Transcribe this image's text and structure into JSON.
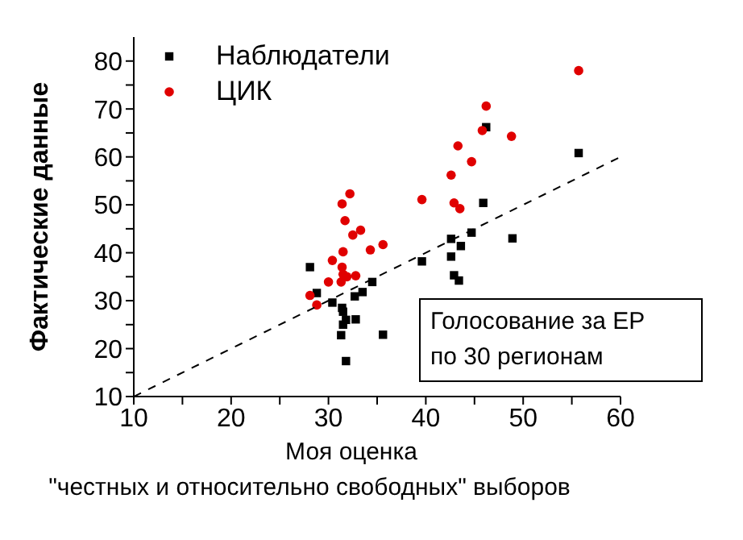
{
  "chart_data": {
    "type": "scatter",
    "xlabel": "Моя оценка\n\"честных и относительно свободных\" выборов",
    "ylabel": "Фактические данные",
    "annotations": [
      "Голосование за ЕР\nпо 30 регионам"
    ],
    "xlim": [
      10,
      60
    ],
    "xticks": [
      10,
      {
        "value": 15,
        "label": null
      },
      20,
      {
        "value": 25,
        "label": null
      },
      30,
      {
        "value": 35,
        "label": null
      },
      40,
      {
        "value": 45,
        "label": null
      },
      50,
      {
        "value": 55,
        "label": null
      },
      60
    ],
    "ylim": [
      10,
      85
    ],
    "yticks": [
      10,
      {
        "value": 15,
        "label": null
      },
      20,
      {
        "value": 25,
        "label": null
      },
      30,
      {
        "value": 35,
        "label": null
      },
      40,
      {
        "value": 45,
        "label": null
      },
      50,
      {
        "value": 55,
        "label": null
      },
      60,
      {
        "value": 65,
        "label": null
      },
      70,
      {
        "value": 75,
        "label": null
      },
      80
    ],
    "grid": false,
    "legend": "top left",
    "series": [
      {
        "name": "Наблюдатели",
        "color": "#000000",
        "marker": "square",
        "x": [
          28.1,
          28.8,
          30.4,
          31.4,
          31.5,
          31.5,
          31.8,
          31.3,
          31.8,
          32.8,
          32.7,
          33.5,
          34.5,
          35.6,
          39.6,
          42.6,
          42.6,
          42.9,
          43.4,
          43.6,
          44.7,
          45.9,
          46.2,
          48.9,
          55.7
        ],
        "values": [
          37.0,
          31.6,
          29.6,
          28.5,
          27.7,
          25.0,
          26.0,
          22.8,
          17.4,
          26.1,
          30.9,
          31.8,
          33.9,
          22.9,
          38.2,
          42.9,
          39.2,
          35.3,
          34.2,
          41.4,
          44.2,
          50.4,
          66.2,
          43.0,
          60.8
        ]
      },
      {
        "name": "ЦИК",
        "color": "#e00000",
        "marker": "circle",
        "x": [
          55.7,
          46.2,
          45.8,
          48.8,
          43.3,
          44.7,
          42.6,
          39.6,
          42.9,
          43.5,
          32.2,
          31.4,
          31.7,
          33.3,
          32.5,
          35.6,
          34.3,
          31.5,
          30.4,
          31.4,
          31.5,
          31.9,
          32.8,
          31.3,
          30.0,
          28.1,
          28.8
        ],
        "values": [
          78.0,
          70.6,
          65.5,
          64.3,
          62.3,
          59.0,
          56.2,
          51.1,
          50.4,
          49.2,
          52.3,
          50.2,
          46.7,
          44.7,
          43.7,
          41.7,
          40.6,
          40.2,
          38.4,
          37.0,
          35.5,
          35.0,
          35.2,
          33.9,
          33.9,
          31.1,
          29.1
        ]
      },
      {
        "type": "line",
        "color": "#000000",
        "marker": "none",
        "line_style": "dashed",
        "x": [
          10,
          60
        ],
        "values": [
          10,
          60
        ]
      }
    ]
  }
}
